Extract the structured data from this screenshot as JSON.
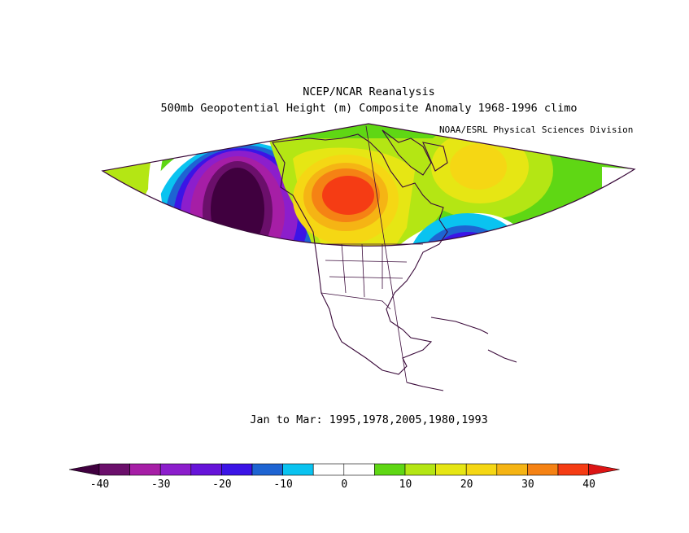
{
  "title": "NCEP/NCAR Reanalysis",
  "subtitle": "500mb Geopotential Height (m) Composite Anomaly 1968-1996 climo",
  "credit": "NOAA/ESRL Physical Sciences Division",
  "period": "Jan to Mar: 1995,1978,2005,1980,1993",
  "colorbar": {
    "ticks": [
      "-40",
      "-30",
      "-20",
      "-10",
      "0",
      "10",
      "20",
      "30",
      "40"
    ],
    "colors": [
      "#6b0f6b",
      "#a61ea6",
      "#8c1ecc",
      "#6614d9",
      "#3b14e6",
      "#1e64d2",
      "#0ac3f0",
      "#ffffff",
      "#ffffff",
      "#5fd714",
      "#b4e614",
      "#e6e614",
      "#f5d714",
      "#f5b414",
      "#f58214",
      "#f53c14"
    ],
    "low_color": "#40003f",
    "high_color": "#dc1414"
  }
}
